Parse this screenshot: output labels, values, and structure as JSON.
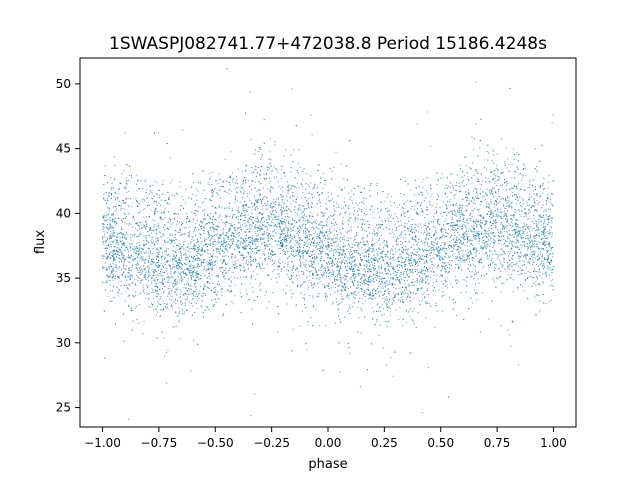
{
  "chart_data": {
    "type": "scatter",
    "title": "1SWASPJ082741.77+472038.8 Period 15186.4248s",
    "xlabel": "phase",
    "ylabel": "flux",
    "xlim": [
      -1.1,
      1.1
    ],
    "ylim": [
      23.5,
      52.0
    ],
    "xticks": [
      -1.0,
      -0.75,
      -0.5,
      -0.25,
      0.0,
      0.25,
      0.5,
      0.75,
      1.0
    ],
    "xtick_labels": [
      "−1.00",
      "−0.75",
      "−0.50",
      "−0.25",
      "0.00",
      "0.25",
      "0.50",
      "0.75",
      "1.00"
    ],
    "yticks": [
      25,
      30,
      35,
      40,
      45,
      50
    ],
    "ytick_labels": [
      "25",
      "30",
      "35",
      "40",
      "45",
      "50"
    ],
    "grid": false,
    "point_color": "#1f77b4",
    "series": [
      {
        "x": [
          -1.0,
          -0.9,
          -0.8,
          -0.7,
          -0.6,
          -0.5,
          -0.4,
          -0.3,
          -0.2,
          -0.1,
          0.0,
          0.1,
          0.2,
          0.3,
          0.4,
          0.5,
          0.6,
          0.7,
          0.8,
          0.9,
          1.0
        ],
        "y": [
          37.5,
          37.0,
          36.3,
          35.8,
          36.0,
          37.0,
          38.0,
          38.6,
          38.4,
          37.5,
          36.5,
          35.8,
          35.5,
          35.7,
          36.2,
          37.0,
          37.8,
          38.5,
          38.6,
          38.0,
          37.5
        ]
      }
    ]
  }
}
